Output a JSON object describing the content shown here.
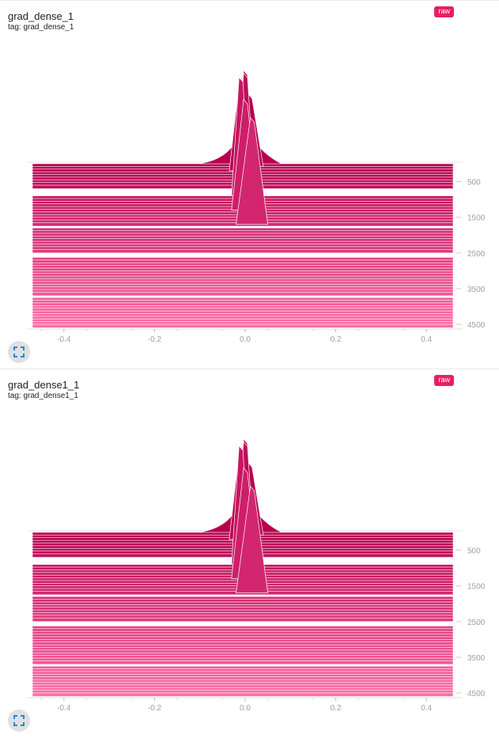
{
  "theme": {
    "dark": "#b9004f",
    "mid": "#dd2c70",
    "light": "#ff6ea8",
    "badge": "#e91e63"
  },
  "icons": {
    "expand": "expand-icon"
  },
  "cards": [
    {
      "title": "grad_dense_1",
      "tag": "tag: grad_dense_1",
      "badge": "raw",
      "chart_data": {
        "type": "histogram",
        "mode": "offset",
        "x_ticks": [
          "-0.4",
          "-0.2",
          "0.0",
          "0.2",
          "0.4"
        ],
        "x_tick_values": [
          -0.4,
          -0.2,
          0.0,
          0.2,
          0.4
        ],
        "xlim": [
          -0.48,
          0.48
        ],
        "y_ticks": [
          "500",
          "1500",
          "2500",
          "3500",
          "4500"
        ],
        "y_tick_values": [
          500,
          1500,
          2500,
          3500,
          4500
        ],
        "step_range": [
          0,
          4500
        ]
      }
    },
    {
      "title": "grad_dense1_1",
      "tag": "tag: grad_dense1_1",
      "badge": "raw",
      "chart_data": {
        "type": "histogram",
        "mode": "offset",
        "x_ticks": [
          "-0.4",
          "-0.2",
          "0.0",
          "0.2",
          "0.4"
        ],
        "x_tick_values": [
          -0.4,
          -0.2,
          0.0,
          0.2,
          0.4
        ],
        "xlim": [
          -0.48,
          0.48
        ],
        "y_ticks": [
          "500",
          "1500",
          "2500",
          "3500",
          "4500"
        ],
        "y_tick_values": [
          500,
          1500,
          2500,
          3500,
          4500
        ],
        "step_range": [
          0,
          4500
        ]
      }
    }
  ]
}
